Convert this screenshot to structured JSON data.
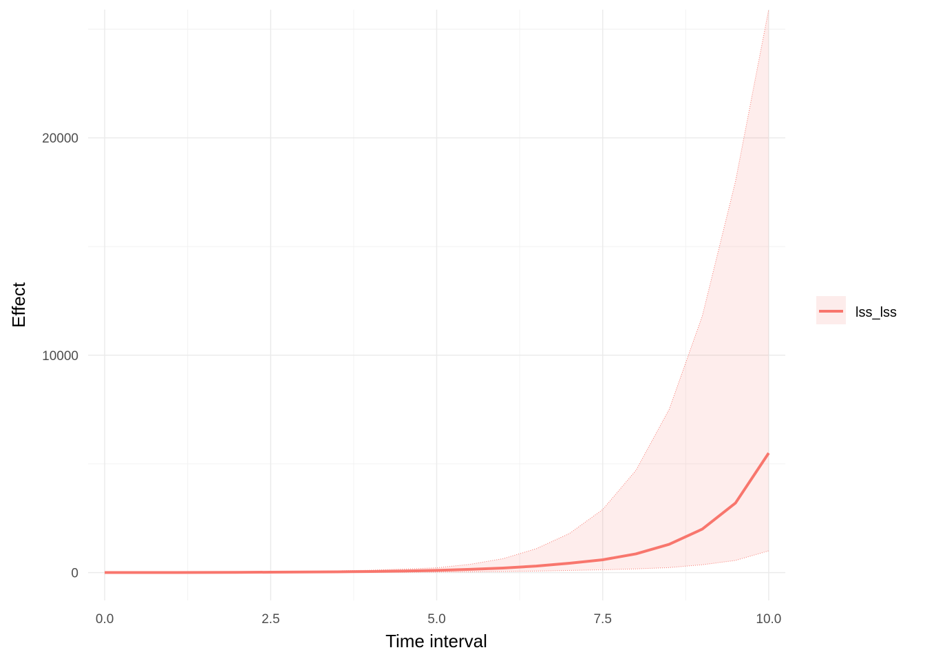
{
  "chart_data": {
    "type": "line",
    "title": "",
    "xlabel": "Time interval",
    "ylabel": "Effect",
    "xlim": [
      -0.25,
      10.25
    ],
    "ylim": [
      -1280,
      25900
    ],
    "x_ticks": [
      0.0,
      2.5,
      5.0,
      7.5,
      10.0
    ],
    "x_tick_labels": [
      "0.0",
      "2.5",
      "5.0",
      "7.5",
      "10.0"
    ],
    "y_ticks": [
      0,
      10000,
      20000
    ],
    "y_tick_labels": [
      "0",
      "10000",
      "20000"
    ],
    "grid": true,
    "legend_position": "right",
    "series": [
      {
        "name": "lss_lss",
        "color": "#F8766D",
        "x": [
          0,
          0.5,
          1,
          1.5,
          2,
          2.5,
          3,
          3.5,
          4,
          4.5,
          5,
          5.5,
          6,
          6.5,
          7,
          7.5,
          8,
          8.5,
          9,
          9.5,
          10
        ],
        "values": [
          1,
          2,
          4,
          6,
          10,
          19,
          25,
          35,
          50,
          70,
          100,
          150,
          210,
          300,
          430,
          590,
          860,
          1300,
          2000,
          3200,
          5500
        ],
        "ci_lower": [
          0,
          0,
          1,
          1,
          2,
          4,
          5,
          8,
          12,
          16,
          25,
          35,
          50,
          70,
          100,
          130,
          170,
          230,
          360,
          560,
          1000
        ],
        "ci_upper": [
          2,
          4,
          8,
          14,
          25,
          40,
          55,
          80,
          110,
          160,
          220,
          380,
          640,
          1100,
          1800,
          2900,
          4700,
          7500,
          11800,
          18000,
          25900
        ]
      }
    ]
  }
}
